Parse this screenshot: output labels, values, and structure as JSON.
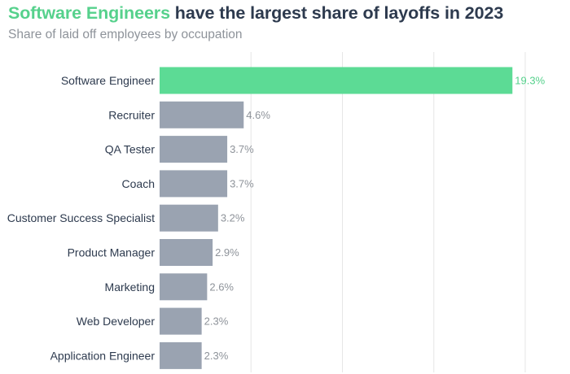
{
  "header": {
    "title_highlight": "Software Engineers",
    "title_rest": " have the largest share of layoffs in 2023",
    "subtitle": "Share of laid off employees by occupation"
  },
  "colors": {
    "highlight": "#5cdb95",
    "highlight_text": "#56d18c",
    "bar": "#9aa3b1",
    "value_text": "#8e939a",
    "grid": "#e6e6e6",
    "label_text": "#2d3a4e"
  },
  "chart_data": {
    "type": "bar",
    "orientation": "horizontal",
    "title": "Software Engineers have the largest share of layoffs in 2023",
    "subtitle": "Share of laid off employees by occupation",
    "categories": [
      "Software Engineer",
      "Recruiter",
      "QA Tester",
      "Coach",
      "Customer Success Specialist",
      "Product Manager",
      "Marketing",
      "Web Developer",
      "Application Engineer"
    ],
    "values": [
      19.3,
      4.6,
      3.7,
      3.7,
      3.2,
      2.9,
      2.6,
      2.3,
      2.3
    ],
    "value_labels": [
      "19.3%",
      "4.6%",
      "3.7%",
      "3.7%",
      "3.2%",
      "2.9%",
      "2.6%",
      "2.3%",
      "2.3%"
    ],
    "highlight_index": 0,
    "xlim": [
      0,
      20
    ],
    "grid": "vertical",
    "legend": "none"
  }
}
